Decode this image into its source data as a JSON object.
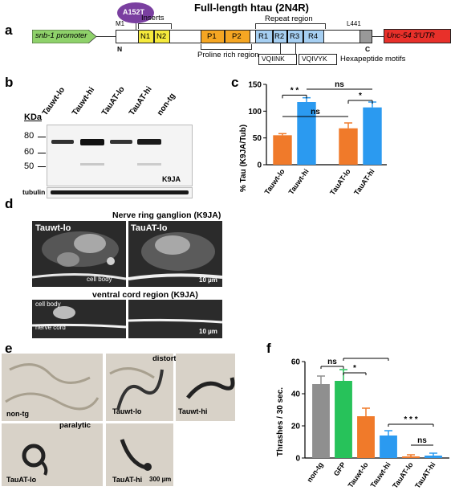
{
  "panels": {
    "a": "a",
    "b": "b",
    "c": "c",
    "d": "d",
    "e": "e",
    "f": "f"
  },
  "panel_a": {
    "title": "Full-length htau (2N4R)",
    "mutation": "A152T",
    "promoter": "snb-1 promoter",
    "utr": "Unc-54 3'UTR",
    "m1": "M1",
    "n_term": "N",
    "l441": "L441",
    "c_term": "C",
    "inserts_label": "Inserts",
    "repeat_label": "Repeat region",
    "proline_label": "Proline rich region",
    "hexapeptide_label": "Hexapeptide motifs",
    "motif1": "VQIINK",
    "motif2": "VQIVYK",
    "domains": {
      "n1": "N1",
      "n2": "N2",
      "p1": "P1",
      "p2": "P2",
      "r1": "R1",
      "r2": "R2",
      "r3": "R3",
      "r4": "R4"
    },
    "colors": {
      "promoter": "#8ed16a",
      "inserts": "#f5ea3c",
      "proline": "#f5a623",
      "repeat": "#a6cff2",
      "utr": "#e8302a",
      "mutation": "#7a3fa0"
    }
  },
  "panel_b": {
    "kda_label": "KDa",
    "markers": [
      "80",
      "60",
      "50"
    ],
    "lanes": [
      "Tauwt-lo",
      "Tauwt-hi",
      "TauAT-lo",
      "TauAT-hi",
      "non-tg"
    ],
    "antibody": "K9JA",
    "loading": "tubulin"
  },
  "panel_c": {
    "ylabel": "% Tau (K9JA/Tub)",
    "ns1": "ns",
    "ns2": "ns",
    "star1": "* *",
    "star2": "*"
  },
  "panel_d": {
    "title_top": "Nerve ring ganglion (K9JA)",
    "left_label": "Tauwt-lo",
    "right_label": "TauAT-lo",
    "cell_body": "cell body",
    "scale1": "10 µm",
    "title_bottom": "ventral cord region (K9JA)",
    "cell_body2": "cell body",
    "nerve_cord": "nerve cord",
    "scale2": "10 µm"
  },
  "panel_e": {
    "labels": [
      "non-tg",
      "Tauwt-lo",
      "Tauwt-hi",
      "TauAT-lo",
      "TauAT-hi"
    ],
    "distorted": "distorted wavemotion",
    "paralytic": "paralytic",
    "scale": "300 µm"
  },
  "panel_f": {
    "ylabel": "Thrashes / 30 sec.",
    "ns1": "ns",
    "ns2": "ns",
    "star1": "*",
    "star2": "* *",
    "star3": "* * *"
  },
  "chart_data": [
    {
      "type": "bar",
      "panel": "c",
      "categories": [
        "Tauwt-lo",
        "Tauwt-hi",
        "TauAT-lo",
        "TauAT-hi"
      ],
      "values": [
        55,
        117,
        68,
        107
      ],
      "errors": [
        3,
        8,
        10,
        10
      ],
      "colors": [
        "#f07a2a",
        "#2b9af0",
        "#f07a2a",
        "#2b9af0"
      ],
      "ylabel": "% Tau (K9JA/Tub)",
      "ylim": [
        0,
        150
      ],
      "yticks": [
        0,
        50,
        100,
        150
      ]
    },
    {
      "type": "bar",
      "panel": "f",
      "categories": [
        "non-tg",
        "GFP",
        "Tauwt-lo",
        "Tauwt-hi",
        "TauAT-lo",
        "TauAT-hi"
      ],
      "values": [
        46,
        48,
        26,
        14,
        1,
        1.5
      ],
      "errors": [
        5,
        7,
        5,
        3,
        1,
        1.5
      ],
      "colors": [
        "#8f8f8f",
        "#27c25a",
        "#f07a2a",
        "#2b9af0",
        "#f07a2a",
        "#2b9af0"
      ],
      "ylabel": "Thrashes / 30 sec.",
      "ylim": [
        0,
        60
      ],
      "yticks": [
        0,
        20,
        40,
        60
      ]
    }
  ]
}
